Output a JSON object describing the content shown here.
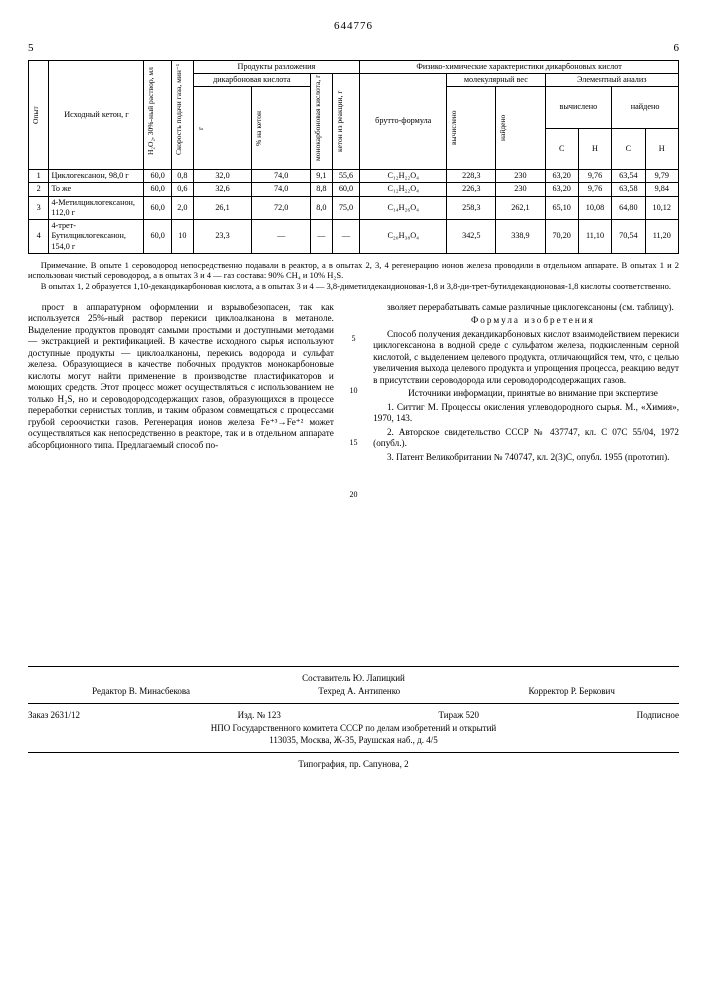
{
  "patent_number": "644776",
  "page_left": "5",
  "page_right": "6",
  "table": {
    "headers": {
      "opyt": "Опыт",
      "ketone": "Исходный кетон, г",
      "h2o2": "H₂O₂, 30%-ный раствор, мл",
      "gasrate": "Скорость подачи газа, мин⁻¹",
      "decomp": "Продукты разложения",
      "dicarb": "дикарбоновая кислота",
      "g": "г",
      "pct": "% на кетон",
      "monocarb": "монокарбоновая кислота, г",
      "ketone_from": "кетон из реакции, г",
      "phys": "Физико-химические характеристики дикарбоновых кислот",
      "brutto": "брутто-формула",
      "molwt": "молекулярный вес",
      "elem": "Элементный анализ",
      "calc": "вычислено",
      "found": "найдено",
      "C": "C",
      "H": "H"
    },
    "rows": [
      {
        "n": "1",
        "ket": "Циклогексанон, 98,0 г",
        "h2o2": "60,0",
        "gas": "0,8",
        "g": "32,0",
        "pct": "74,0",
        "mono": "9,1",
        "kfr": "55,6",
        "brutto": "C₁₂H₂₂O₄",
        "mw_c": "228,3",
        "mw_f": "230",
        "cc": "63,20",
        "hc": "9,76",
        "cf": "63,54",
        "hf": "9,79"
      },
      {
        "n": "2",
        "ket": "То же",
        "h2o2": "60,0",
        "gas": "0,6",
        "g": "32,6",
        "pct": "74,0",
        "mono": "8,8",
        "kfr": "60,0",
        "brutto": "C₁₂H₂₂O₄",
        "mw_c": "226,3",
        "mw_f": "230",
        "cc": "63,20",
        "hc": "9,76",
        "cf": "63,58",
        "hf": "9,84"
      },
      {
        "n": "3",
        "ket": "4-Метилциклогексанон, 112,0 г",
        "h2o2": "60,0",
        "gas": "2,0",
        "g": "26,1",
        "pct": "72,0",
        "mono": "8,0",
        "kfr": "75,0",
        "brutto": "C₁₄H₂₆O₄",
        "mw_c": "258,3",
        "mw_f": "262,1",
        "cc": "65,10",
        "hc": "10,08",
        "cf": "64,80",
        "hf": "10,12"
      },
      {
        "n": "4",
        "ket": "4-трет-Бутилциклогексанон, 154,0 г",
        "h2o2": "60,0",
        "gas": "10",
        "g": "23,3",
        "pct": "—",
        "mono": "—",
        "kfr": "—",
        "brutto": "C₂₀H₃₈O₄",
        "mw_c": "342,5",
        "mw_f": "338,9",
        "cc": "70,20",
        "hc": "11,10",
        "cf": "70,54",
        "hf": "11,20"
      }
    ]
  },
  "note": {
    "p1": "Примечание. В опыте 1 сероводород непосредственно подавали в реактор, а в опытах 2, 3, 4 регенерацию ионов железа проводили в отдельном аппарате. В опытах 1 и 2 использован чистый сероводород, а в опытах 3 и 4 — газ состава: 90% CH₄ и 10% H₂S.",
    "p2": "В опытах 1, 2 образуется 1,10-декандикарбоновая кислота, а в опытах 3 и 4 — 3,8-диметилдекандионовая-1,8 и 3,8-ди-трет-бутилдекандионовая-1,8 кислоты соответственно."
  },
  "left_col": {
    "p1": "прост в аппаратурном оформлении и взрывобезопасен, так как используется 25%-ный раствор перекиси циклоалканона в метаноле. Выделение продуктов проводят самыми простыми и доступными методами — экстракцией и ректификацией. В качестве исходного сырья используют доступные продукты — циклоалканоны, перекись водорода и сульфат железа. Образующиеся в качестве побочных продуктов монокарбоновые кислоты могут найти применение в производстве пластификаторов и моющих средств. Этот процесс может осуществляться с использованием не только H₂S, но и сероводородсодержащих газов, образующихся в процессе переработки сернистых топлив, и таким образом совмещаться с процессами грубой сероочистки газов. Регенерация ионов железа Fe⁺³→Fe⁺² может осуществляться как непосредственно в реакторе, так и в отдельном аппарате абсорбционного типа. Предлагаемый способ по-"
  },
  "right_col": {
    "p1": "зволяет перерабатывать самые различные циклогексаноны (см. таблицу).",
    "formula_title": "Формула изобретения",
    "p2": "Способ получения декандикарбоновых кислот взаимодействием перекиси циклогексанона в водной среде с сульфатом железа, подкисленным серной кислотой, с выделением целевого продукта, отличающийся тем, что, с целью увеличения выхода целевого продукта и упрощения процесса, реакцию ведут в присутствии сероводорода или сероводородсодержащих газов.",
    "sources_title": "Источники информации, принятые во внимание при экспертизе",
    "s1": "1. Ситтиг М. Процессы окисления углеводородного сырья. М., «Химия», 1970, 143.",
    "s2": "2. Авторское свидетельство СССР № 437747, кл. C 07C 55/04, 1972 (опубл.).",
    "s3": "3. Патент Великобритании № 740747, кл. 2(3)C, опубл. 1955 (прототип)."
  },
  "linenums": {
    "l5": "5",
    "l10": "10",
    "l15": "15",
    "l20": "20"
  },
  "credits": {
    "compiler": "Составитель Ю. Лапицкий",
    "editor": "Редактор В. Минасбекова",
    "techred": "Техред А. Антипенко",
    "corrector": "Корректор Р. Беркович",
    "order": "Заказ 2631/12",
    "izd": "Изд. № 123",
    "tirazh": "Тираж 520",
    "sub": "Подписное",
    "org": "НПО Государственного комитета СССР по делам изобретений и открытий",
    "addr": "113035, Москва, Ж-35, Раушская наб., д. 4/5",
    "typo": "Типография, пр. Сапунова, 2"
  }
}
